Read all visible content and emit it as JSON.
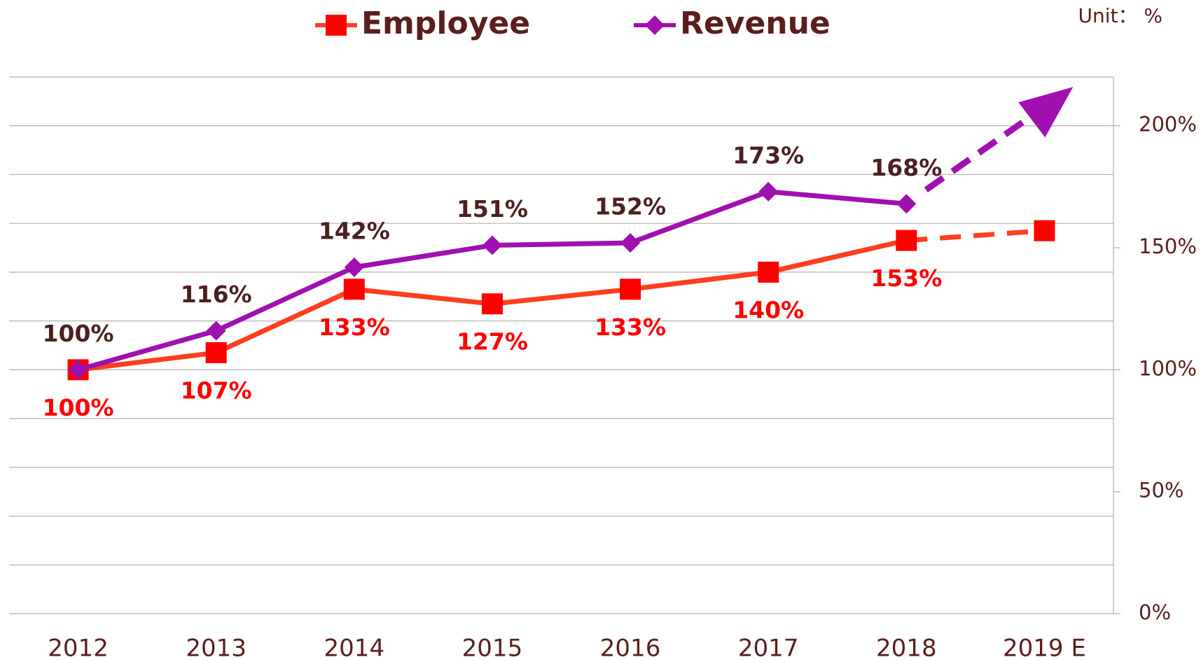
{
  "chart_data": {
    "type": "line",
    "unit_note": "Unit： %",
    "categories": [
      "2012",
      "2013",
      "2014",
      "2015",
      "2016",
      "2017",
      "2018",
      "2019 E"
    ],
    "series": [
      {
        "name": "Employee",
        "color": "#ff3d1f",
        "marker": "square",
        "marker_color": "#ff0000",
        "label_color": "#ff0000",
        "label_position": "below",
        "dashed_last_segment": true,
        "values": [
          100,
          107,
          133,
          127,
          133,
          140,
          153,
          157
        ],
        "value_labels": [
          "100%",
          "107%",
          "133%",
          "127%",
          "133%",
          "140%",
          "153%",
          null
        ]
      },
      {
        "name": "Revenue",
        "color": "#a010b0",
        "marker": "diamond",
        "marker_color": "#a010b0",
        "label_color": "#4a2020",
        "label_position": "above",
        "trend_arrow": true,
        "values": [
          100,
          116,
          142,
          151,
          152,
          173,
          168,
          null
        ],
        "value_labels": [
          "100%",
          "116%",
          "142%",
          "151%",
          "152%",
          "173%",
          "168%",
          null
        ]
      }
    ],
    "ylim": [
      0,
      220
    ],
    "yticks": [
      {
        "value": 0,
        "label": "0%"
      },
      {
        "value": 50,
        "label": "50%"
      },
      {
        "value": 100,
        "label": "100%"
      },
      {
        "value": 150,
        "label": "150%"
      },
      {
        "value": 200,
        "label": "200%"
      }
    ],
    "ygrid": [
      0,
      20,
      40,
      60,
      80,
      100,
      120,
      140,
      160,
      180,
      200,
      220
    ],
    "grid": true,
    "y_axis_side": "right",
    "legend": "top"
  }
}
